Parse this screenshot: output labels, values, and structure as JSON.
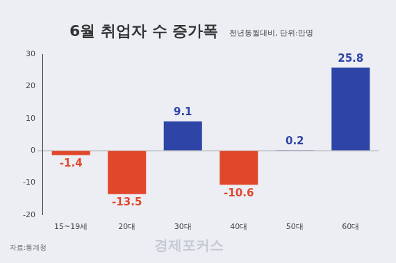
{
  "chart_data": {
    "type": "bar",
    "title": "6월 취업자 수 증가폭",
    "subtitle": "전년동월대비, 단위:만명",
    "source": "자료:통계청",
    "watermark": "경제포커스",
    "categories": [
      "15~19세",
      "20대",
      "30대",
      "40대",
      "50대",
      "60대"
    ],
    "values": [
      -1.4,
      -13.5,
      9.1,
      -10.6,
      0.2,
      25.8
    ],
    "colors": [
      "#e0472b",
      "#e0472b",
      "#2e44a6",
      "#e0472b",
      "#2e44a6",
      "#2e44a6"
    ],
    "ylim": [
      -20,
      30
    ],
    "yticks": [
      -20,
      -10,
      0,
      10,
      20,
      30
    ],
    "grid": false,
    "data_labels": true
  }
}
